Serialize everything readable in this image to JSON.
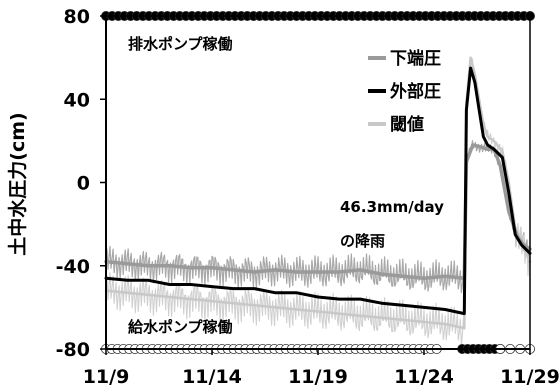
{
  "chart_data": {
    "type": "line",
    "ylabel": "土中水圧力(cm)",
    "ylim": [
      -80,
      80
    ],
    "yticks": [
      -80,
      -40,
      0,
      40,
      80
    ],
    "xlim": [
      0,
      20
    ],
    "xticks": [
      {
        "x": 0,
        "label": "11/9"
      },
      {
        "x": 5,
        "label": "11/14"
      },
      {
        "x": 10,
        "label": "11/19"
      },
      {
        "x": 15,
        "label": "11/24"
      },
      {
        "x": 20,
        "label": "11/29"
      }
    ],
    "grid": false,
    "legend_position": "top-right",
    "series": [
      {
        "name": "下端圧",
        "color": "#9a9a9a",
        "width": 3.5,
        "x": [
          0,
          1,
          2,
          3,
          4,
          5,
          6,
          7,
          8,
          9,
          10,
          11,
          12,
          13,
          14,
          15,
          16,
          16.9,
          17.0,
          17.3,
          17.7,
          18.0,
          18.3,
          18.6,
          19.0,
          19.4,
          19.7,
          20
        ],
        "values": [
          -38,
          -39,
          -40,
          -40,
          -41,
          -41,
          -42,
          -43,
          -42,
          -43,
          -43,
          -43,
          -42,
          -44,
          -45,
          -46,
          -45,
          -46,
          10,
          18,
          17,
          16,
          16,
          8,
          -14,
          -26,
          -30,
          -32
        ]
      },
      {
        "name": "外部圧",
        "color": "#000000",
        "width": 3,
        "x": [
          0,
          1,
          2,
          3,
          4,
          5,
          6,
          7,
          8,
          9,
          10,
          11,
          12,
          13,
          14,
          15,
          16,
          16.9,
          17.0,
          17.2,
          17.4,
          17.6,
          17.8,
          18.0,
          18.3,
          18.7,
          19.0,
          19.3,
          19.6,
          20
        ],
        "values": [
          -46,
          -47,
          -47,
          -49,
          -49,
          -50,
          -51,
          -51,
          -53,
          -53,
          -55,
          -56,
          -56,
          -58,
          -59,
          -60,
          -61,
          -63,
          35,
          55,
          48,
          35,
          22,
          18,
          16,
          12,
          -5,
          -25,
          -30,
          -34
        ]
      },
      {
        "name": "閾値",
        "color": "#c8c8c8",
        "width": 2.5,
        "x": [
          0,
          1,
          2,
          3,
          4,
          5,
          6,
          7,
          8,
          9,
          10,
          11,
          12,
          13,
          14,
          15,
          16,
          16.9,
          17.0,
          17.2,
          17.4,
          17.6,
          17.8,
          18.0,
          18.3,
          18.7,
          19.0,
          19.3,
          19.6,
          20
        ],
        "values": [
          -52,
          -53,
          -54,
          -55,
          -56,
          -57,
          -58,
          -59,
          -60,
          -61,
          -62,
          -63,
          -64,
          -65,
          -66,
          -67,
          -68,
          -70,
          38,
          60,
          52,
          40,
          28,
          22,
          20,
          15,
          0,
          -22,
          -30,
          -38
        ]
      }
    ],
    "pump_markers": [
      {
        "name": "排水ポンプ稼働",
        "y": 80,
        "fill": "#000000",
        "from": 0,
        "to": 20,
        "count": 70
      },
      {
        "name": "給水ポンプ稼働",
        "y": -80,
        "fill": "#ffffff",
        "from": 0,
        "to": 15.6,
        "count": 58
      },
      {
        "name": "給水ポンプ稼働",
        "y": -80,
        "fill": "#000000",
        "from": 16.8,
        "to": 18.6,
        "count": 8
      },
      {
        "name": "給水ポンプ稼働",
        "y": -80,
        "fill": "#ffffff",
        "from": 18.6,
        "to": 20,
        "count": 4
      }
    ],
    "annotations": {
      "drain_pump": "排水ポンプ稼働",
      "supply_pump": "給水ポンプ稼働",
      "rain_line1": "46.3mm/day",
      "rain_line2": "の降雨"
    }
  }
}
